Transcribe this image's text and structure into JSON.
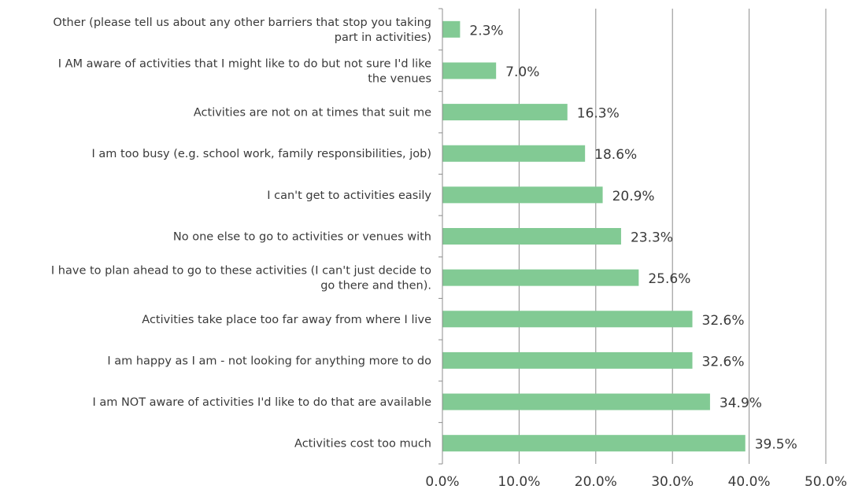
{
  "chart_data": {
    "type": "bar",
    "orientation": "horizontal",
    "title": "",
    "xlabel": "",
    "ylabel": "",
    "xlim": [
      0,
      50
    ],
    "xticks": [
      "0.0%",
      "10.0%",
      "20.0%",
      "30.0%",
      "40.0%",
      "50.0%"
    ],
    "grid": true,
    "legend": "none",
    "bar_color": "#82ca94",
    "categories": [
      [
        "Other (please tell us about any other barriers that stop you taking",
        "part in activities)"
      ],
      [
        "I AM aware of activities that I might like to do but not sure I'd like",
        "the venues"
      ],
      [
        "Activities are not on at times that suit me"
      ],
      [
        "I am too busy (e.g. school work, family responsibilities, job)"
      ],
      [
        "I can't get to activities easily"
      ],
      [
        "No one else to go to activities or venues with"
      ],
      [
        "I have to plan ahead to go to these activities (I can't just decide to",
        "go there and then)."
      ],
      [
        "Activities take place too far away from where I live"
      ],
      [
        "I am happy as I am - not looking for anything more to do"
      ],
      [
        "I am NOT aware of activities I'd like to do that are available"
      ],
      [
        "Activities cost too much"
      ]
    ],
    "values": [
      2.3,
      7.0,
      16.3,
      18.6,
      20.9,
      23.3,
      25.6,
      32.6,
      32.6,
      34.9,
      39.5
    ],
    "value_labels": [
      "2.3%",
      "7.0%",
      "16.3%",
      "18.6%",
      "20.9%",
      "23.3%",
      "25.6%",
      "32.6%",
      "32.6%",
      "34.9%",
      "39.5%"
    ]
  }
}
